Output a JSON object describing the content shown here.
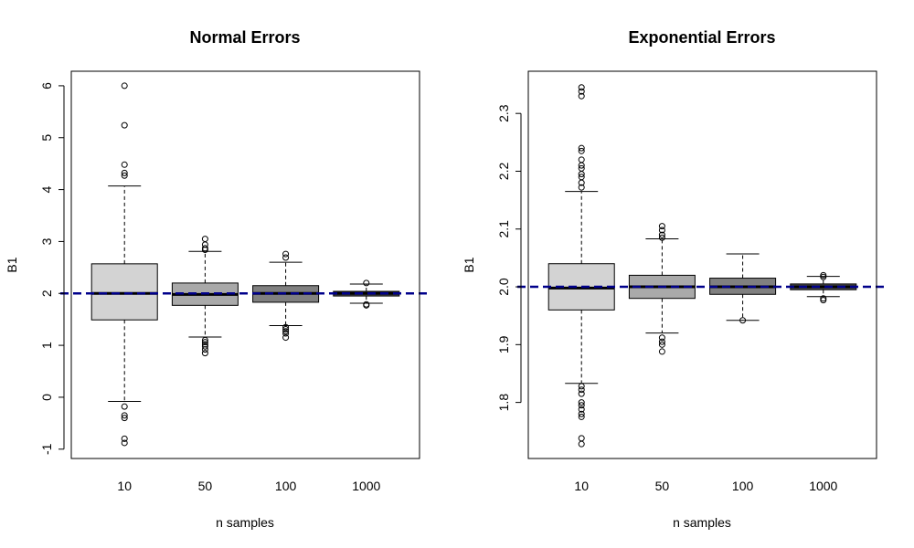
{
  "colors": {
    "box_fills": [
      "#d3d3d3",
      "#a9a9a9",
      "#808080",
      "#505050"
    ],
    "reference_line": "#00008b",
    "frame": "#000000"
  },
  "chart_data": [
    {
      "type": "boxplot",
      "title": "Normal Errors",
      "xlabel": "n samples",
      "ylabel": "B1",
      "categories": [
        "10",
        "50",
        "100",
        "1000"
      ],
      "ylim": [
        -1.18,
        6.28
      ],
      "yticks": [
        -1,
        0,
        1,
        2,
        3,
        4,
        5,
        6
      ],
      "ytick_labels": [
        "-1",
        "0",
        "1",
        "2",
        "3",
        "4",
        "5",
        "6"
      ],
      "reference_line": 2,
      "boxes": [
        {
          "whisker_low": -0.08,
          "q1": 1.49,
          "median": 2.0,
          "q3": 2.57,
          "whisker_high": 4.07,
          "outliers": [
            6.0,
            5.24,
            4.48,
            4.32,
            4.27,
            -0.18,
            -0.35,
            -0.4,
            -0.8,
            -0.88
          ]
        },
        {
          "whisker_low": 1.16,
          "q1": 1.77,
          "median": 1.98,
          "q3": 2.2,
          "whisker_high": 2.81,
          "outliers": [
            3.05,
            2.94,
            2.87,
            2.84,
            1.1,
            1.06,
            1.02,
            0.98,
            0.92,
            0.85
          ]
        },
        {
          "whisker_low": 1.38,
          "q1": 1.83,
          "median": 2.0,
          "q3": 2.15,
          "whisker_high": 2.6,
          "outliers": [
            2.76,
            2.69,
            1.35,
            1.31,
            1.27,
            1.23,
            1.15
          ]
        },
        {
          "whisker_low": 1.81,
          "q1": 1.95,
          "median": 2.0,
          "q3": 2.04,
          "whisker_high": 2.18,
          "outliers": [
            2.2,
            1.79,
            1.77
          ]
        }
      ]
    },
    {
      "type": "boxplot",
      "title": "Exponential Errors",
      "xlabel": "n samples",
      "ylabel": "B1",
      "categories": [
        "10",
        "50",
        "100",
        "1000"
      ],
      "ylim": [
        1.703,
        2.373
      ],
      "yticks": [
        1.8,
        1.9,
        2.0,
        2.1,
        2.2,
        2.3
      ],
      "ytick_labels": [
        "1.8",
        "1.9",
        "2.0",
        "2.1",
        "2.2",
        "2.3"
      ],
      "reference_line": 2.0,
      "boxes": [
        {
          "whisker_low": 1.833,
          "q1": 1.96,
          "median": 1.998,
          "q3": 2.04,
          "whisker_high": 2.165,
          "outliers": [
            2.345,
            2.338,
            2.33,
            2.24,
            2.235,
            2.22,
            2.21,
            2.205,
            2.195,
            2.19,
            2.18,
            2.172,
            1.828,
            1.822,
            1.815,
            1.8,
            1.795,
            1.788,
            1.78,
            1.775,
            1.738,
            1.728
          ]
        },
        {
          "whisker_low": 1.92,
          "q1": 1.98,
          "median": 2.0,
          "q3": 2.02,
          "whisker_high": 2.083,
          "outliers": [
            2.105,
            2.098,
            2.09,
            2.085,
            1.912,
            1.905,
            1.9,
            1.888
          ]
        },
        {
          "whisker_low": 1.942,
          "q1": 1.987,
          "median": 2.0,
          "q3": 2.015,
          "whisker_high": 2.057,
          "outliers": [
            1.942
          ]
        },
        {
          "whisker_low": 1.983,
          "q1": 1.995,
          "median": 2.0,
          "q3": 2.005,
          "whisker_high": 2.018,
          "outliers": [
            2.02,
            2.017,
            1.98,
            1.977
          ]
        }
      ]
    }
  ]
}
